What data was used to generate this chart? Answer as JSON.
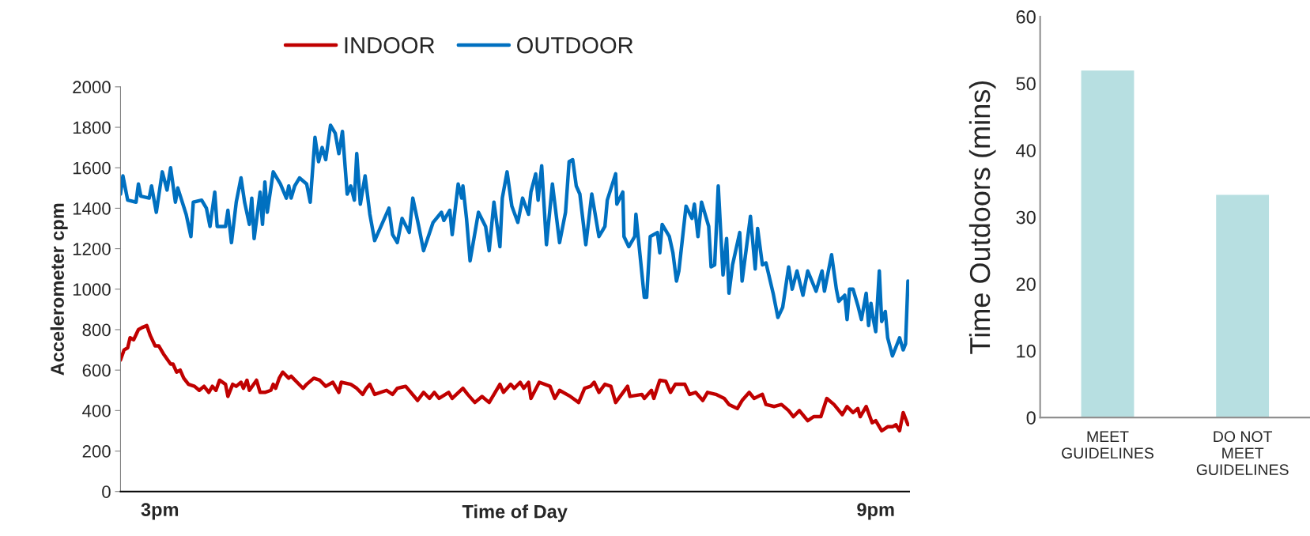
{
  "chart_data": [
    {
      "type": "line",
      "xlabel": "Time of Day",
      "ylabel": "Accelerometer cpm",
      "legend": "top",
      "xlim": [
        2.67,
        9.28
      ],
      "xticks": [
        {
          "value": 3,
          "label": "3pm"
        },
        {
          "value": 9,
          "label": "9pm"
        }
      ],
      "ylim": [
        0,
        2000
      ],
      "yticks": [
        0,
        200,
        400,
        600,
        800,
        1000,
        1200,
        1400,
        1600,
        1800,
        2000
      ],
      "series": [
        {
          "name": "INDOOR",
          "color": "#c00000",
          "x": [
            2.67,
            2.7,
            2.73,
            2.75,
            2.78,
            2.82,
            2.85,
            2.89,
            2.92,
            2.96,
            2.99,
            3.03,
            3.09,
            3.11,
            3.14,
            3.17,
            3.2,
            3.24,
            3.29,
            3.33,
            3.37,
            3.41,
            3.44,
            3.47,
            3.5,
            3.55,
            3.57,
            3.61,
            3.64,
            3.68,
            3.7,
            3.73,
            3.75,
            3.81,
            3.84,
            3.88,
            3.93,
            3.95,
            3.97,
            4.0,
            4.03,
            4.08,
            4.1,
            4.2,
            4.23,
            4.29,
            4.34,
            4.39,
            4.45,
            4.5,
            4.52,
            4.6,
            4.65,
            4.7,
            4.73,
            4.76,
            4.8,
            4.9,
            4.95,
            4.99,
            5.06,
            5.16,
            5.21,
            5.26,
            5.3,
            5.34,
            5.42,
            5.45,
            5.54,
            5.58,
            5.64,
            5.7,
            5.76,
            5.85,
            5.88,
            5.94,
            5.97,
            6.02,
            6.05,
            6.09,
            6.11,
            6.18,
            6.27,
            6.31,
            6.35,
            6.44,
            6.51,
            6.56,
            6.61,
            6.64,
            6.68,
            6.73,
            6.78,
            6.82,
            6.87,
            6.92,
            6.94,
            7.04,
            7.06,
            7.12,
            7.14,
            7.19,
            7.24,
            7.28,
            7.32,
            7.4,
            7.44,
            7.49,
            7.55,
            7.59,
            7.66,
            7.73,
            7.77,
            7.84,
            7.88,
            7.94,
            7.98,
            8.05,
            8.08,
            8.15,
            8.21,
            8.27,
            8.31,
            8.36,
            8.43,
            8.48,
            8.54,
            8.59,
            8.65,
            8.72,
            8.76,
            8.81,
            8.85,
            8.87,
            8.92,
            8.97,
            9.0,
            9.05,
            9.1,
            9.14,
            9.17,
            9.2,
            9.23,
            9.27
          ],
          "values": [
            650,
            700,
            710,
            760,
            750,
            800,
            810,
            820,
            770,
            720,
            720,
            680,
            630,
            630,
            590,
            600,
            560,
            530,
            520,
            500,
            520,
            490,
            520,
            500,
            550,
            530,
            470,
            530,
            520,
            540,
            510,
            550,
            500,
            550,
            490,
            490,
            500,
            530,
            510,
            560,
            590,
            560,
            570,
            510,
            530,
            560,
            550,
            520,
            540,
            490,
            540,
            530,
            510,
            480,
            510,
            530,
            480,
            500,
            480,
            510,
            520,
            450,
            490,
            460,
            490,
            460,
            490,
            460,
            510,
            480,
            440,
            470,
            440,
            530,
            490,
            530,
            510,
            540,
            510,
            540,
            460,
            540,
            520,
            460,
            500,
            470,
            440,
            510,
            520,
            540,
            490,
            530,
            520,
            440,
            480,
            520,
            470,
            480,
            460,
            500,
            460,
            550,
            545,
            490,
            530,
            530,
            480,
            490,
            450,
            490,
            480,
            460,
            430,
            410,
            450,
            490,
            460,
            480,
            430,
            420,
            430,
            400,
            370,
            400,
            350,
            370,
            370,
            460,
            430,
            380,
            420,
            390,
            410,
            370,
            420,
            340,
            350,
            300,
            320,
            320,
            330,
            300,
            390,
            330
          ]
        },
        {
          "name": "OUTDOOR",
          "color": "#0070c0",
          "x": [
            2.67,
            2.69,
            2.73,
            2.8,
            2.82,
            2.84,
            2.91,
            2.93,
            2.97,
            3.02,
            3.06,
            3.09,
            3.13,
            3.15,
            3.22,
            3.26,
            3.28,
            3.35,
            3.39,
            3.42,
            3.46,
            3.48,
            3.55,
            3.57,
            3.6,
            3.64,
            3.68,
            3.71,
            3.75,
            3.77,
            3.79,
            3.84,
            3.86,
            3.88,
            3.9,
            3.95,
            4.01,
            4.06,
            4.08,
            4.1,
            4.13,
            4.17,
            4.23,
            4.26,
            4.3,
            4.33,
            4.36,
            4.39,
            4.43,
            4.47,
            4.5,
            4.53,
            4.57,
            4.6,
            4.63,
            4.65,
            4.68,
            4.72,
            4.76,
            4.8,
            4.92,
            4.95,
            4.99,
            5.03,
            5.09,
            5.12,
            5.17,
            5.21,
            5.29,
            5.36,
            5.38,
            5.43,
            5.45,
            5.5,
            5.53,
            5.54,
            5.57,
            5.6,
            5.67,
            5.73,
            5.76,
            5.8,
            5.85,
            5.87,
            5.91,
            5.95,
            6.0,
            6.04,
            6.09,
            6.11,
            6.15,
            6.17,
            6.2,
            6.24,
            6.29,
            6.35,
            6.4,
            6.43,
            6.46,
            6.49,
            6.52,
            6.57,
            6.62,
            6.68,
            6.73,
            6.75,
            6.82,
            6.83,
            6.88,
            6.89,
            6.93,
            6.98,
            6.99,
            7.06,
            7.08,
            7.11,
            7.17,
            7.19,
            7.21,
            7.27,
            7.3,
            7.33,
            7.35,
            7.41,
            7.46,
            7.48,
            7.51,
            7.54,
            7.6,
            7.62,
            7.65,
            7.68,
            7.72,
            7.75,
            7.77,
            7.8,
            7.86,
            7.88,
            7.95,
            7.99,
            8.01,
            8.05,
            8.08,
            8.14,
            8.18,
            8.22,
            8.27,
            8.3,
            8.34,
            8.39,
            8.43,
            8.5,
            8.55,
            8.57,
            8.63,
            8.67,
            8.69,
            8.74,
            8.76,
            8.78,
            8.81,
            8.85,
            8.88,
            8.92,
            8.94,
            8.96,
            8.98,
            9.0,
            9.03,
            9.05,
            9.08,
            9.1,
            9.14,
            9.2,
            9.23,
            9.25,
            9.27
          ],
          "values": [
            1470,
            1560,
            1440,
            1430,
            1520,
            1460,
            1450,
            1510,
            1380,
            1580,
            1490,
            1600,
            1430,
            1500,
            1370,
            1260,
            1430,
            1440,
            1400,
            1310,
            1480,
            1310,
            1310,
            1390,
            1230,
            1430,
            1550,
            1430,
            1320,
            1450,
            1250,
            1480,
            1320,
            1530,
            1380,
            1580,
            1520,
            1450,
            1510,
            1450,
            1510,
            1550,
            1520,
            1430,
            1750,
            1630,
            1700,
            1640,
            1810,
            1770,
            1670,
            1780,
            1470,
            1510,
            1440,
            1670,
            1420,
            1560,
            1370,
            1240,
            1400,
            1270,
            1230,
            1350,
            1280,
            1450,
            1310,
            1190,
            1330,
            1380,
            1340,
            1390,
            1270,
            1520,
            1450,
            1510,
            1350,
            1140,
            1380,
            1310,
            1190,
            1430,
            1210,
            1450,
            1580,
            1410,
            1330,
            1450,
            1370,
            1480,
            1570,
            1440,
            1610,
            1220,
            1520,
            1230,
            1380,
            1630,
            1640,
            1510,
            1470,
            1220,
            1470,
            1260,
            1310,
            1440,
            1570,
            1420,
            1480,
            1260,
            1210,
            1260,
            1370,
            960,
            960,
            1260,
            1280,
            1180,
            1320,
            1260,
            1180,
            1040,
            1090,
            1410,
            1350,
            1420,
            1260,
            1430,
            1310,
            1110,
            1120,
            1510,
            1070,
            1250,
            980,
            1120,
            1280,
            1040,
            1360,
            1100,
            1300,
            1120,
            1130,
            980,
            860,
            910,
            1110,
            1000,
            1090,
            970,
            1090,
            990,
            1090,
            990,
            1170,
            1000,
            940,
            970,
            850,
            1000,
            1000,
            920,
            850,
            980,
            820,
            930,
            850,
            790,
            1090,
            840,
            890,
            760,
            670,
            760,
            700,
            730,
            1040
          ]
        }
      ]
    },
    {
      "type": "bar",
      "ylabel": "Time Outdoors (mins)",
      "categories": [
        "MEET\nGUIDELINES",
        "DO NOT\nMEET\nGUIDELINES"
      ],
      "values": [
        52,
        33.4
      ],
      "color": "#b7dfe1",
      "ylim": [
        0,
        60
      ],
      "yticks": [
        0,
        10,
        20,
        30,
        40,
        50,
        60
      ]
    }
  ]
}
